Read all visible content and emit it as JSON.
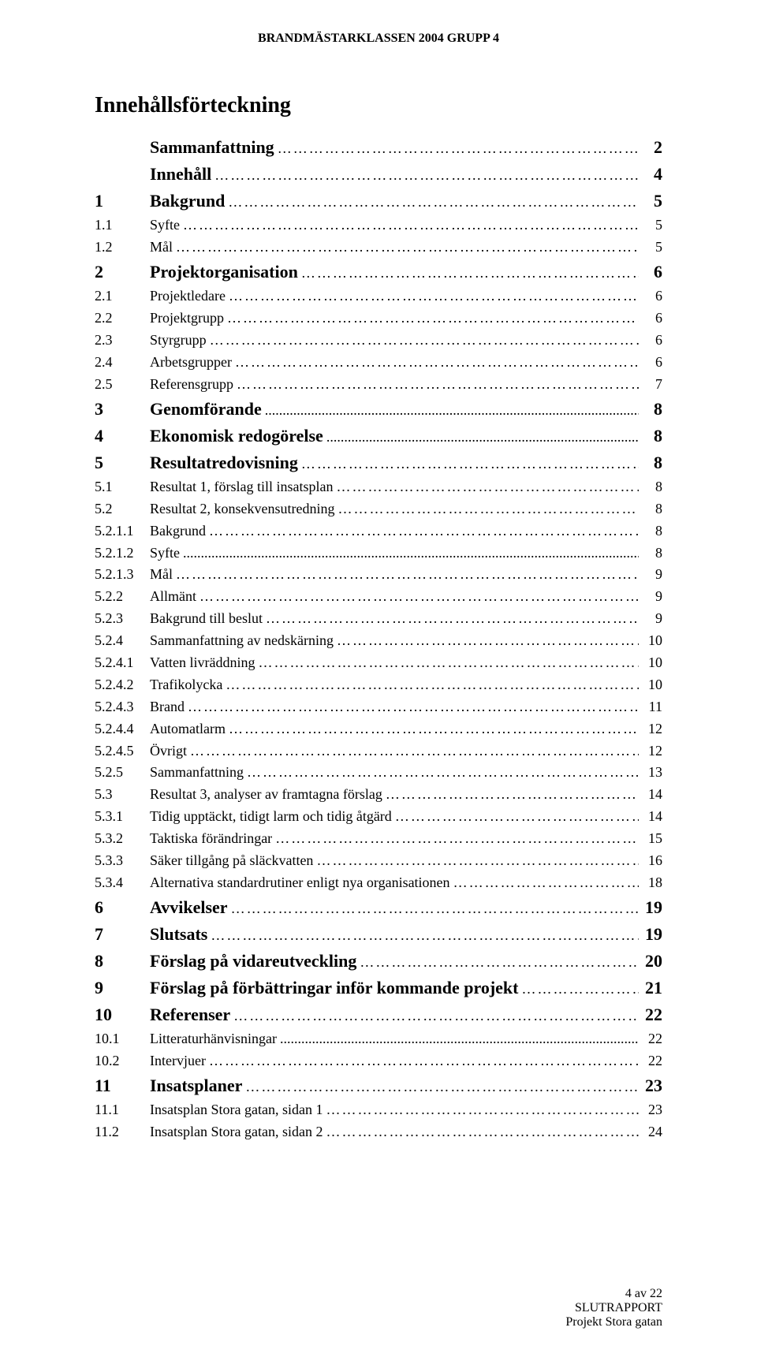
{
  "header": "BRANDMÄSTARKLASSEN 2004 GRUPP 4",
  "toc_title": "Innehållsförteckning",
  "footer_line1": "4 av 22",
  "footer_line2": "SLUTRAPPORT",
  "footer_line3": "Projekt Stora gatan",
  "entries": [
    {
      "num": "",
      "label": "Sammanfattning",
      "page": "2",
      "bold": true,
      "big": true
    },
    {
      "num": "",
      "label": "Innehåll",
      "page": "4",
      "bold": true,
      "big": true
    },
    {
      "num": "1",
      "label": "Bakgrund",
      "page": "5",
      "bold": true,
      "big": true
    },
    {
      "num": "1.1",
      "label": "Syfte",
      "page": "5",
      "bold": false,
      "big": false
    },
    {
      "num": "1.2",
      "label": "Mål",
      "page": "5",
      "bold": false,
      "big": false
    },
    {
      "num": "2",
      "label": "Projektorganisation",
      "page": "6",
      "bold": true,
      "big": true
    },
    {
      "num": "2.1",
      "label": "Projektledare",
      "page": "6",
      "bold": false,
      "big": false
    },
    {
      "num": "2.2",
      "label": "Projektgrupp",
      "page": "6",
      "bold": false,
      "big": false
    },
    {
      "num": "2.3",
      "label": "Styrgrupp",
      "page": "6",
      "bold": false,
      "big": false
    },
    {
      "num": "2.4",
      "label": "Arbetsgrupper",
      "page": "6",
      "bold": false,
      "big": false
    },
    {
      "num": "2.5",
      "label": "Referensgrupp",
      "page": "7",
      "bold": false,
      "big": false
    },
    {
      "num": "3",
      "label": "Genomförande",
      "page": "8",
      "bold": true,
      "big": true,
      "dots": "dotty"
    },
    {
      "num": "4",
      "label": "Ekonomisk redogörelse",
      "page": "8",
      "bold": true,
      "big": true,
      "dots": "dotty"
    },
    {
      "num": "5",
      "label": "Resultatredovisning",
      "page": "8",
      "bold": true,
      "big": true
    },
    {
      "num": "5.1",
      "label": "Resultat 1, förslag till insatsplan",
      "page": "8",
      "bold": false,
      "big": false
    },
    {
      "num": "5.2",
      "label": "Resultat 2, konsekvensutredning",
      "page": "8",
      "bold": false,
      "big": false
    },
    {
      "num": "5.2.1.1",
      "label": "Bakgrund",
      "page": "8",
      "bold": false,
      "big": false
    },
    {
      "num": "5.2.1.2",
      "label": "Syfte",
      "page": "8",
      "bold": false,
      "big": false,
      "dots": "dotty"
    },
    {
      "num": "5.2.1.3",
      "label": "Mål",
      "page": "9",
      "bold": false,
      "big": false
    },
    {
      "num": "5.2.2",
      "label": "Allmänt",
      "page": "9",
      "bold": false,
      "big": false
    },
    {
      "num": "5.2.3",
      "label": "Bakgrund till beslut",
      "page": "9",
      "bold": false,
      "big": false
    },
    {
      "num": "5.2.4",
      "label": "Sammanfattning av nedskärning",
      "page": "10",
      "bold": false,
      "big": false
    },
    {
      "num": "5.2.4.1",
      "label": "Vatten livräddning",
      "page": "10",
      "bold": false,
      "big": false
    },
    {
      "num": "5.2.4.2",
      "label": "Trafikolycka",
      "page": "10",
      "bold": false,
      "big": false
    },
    {
      "num": "5.2.4.3",
      "label": "Brand",
      "page": "11",
      "bold": false,
      "big": false
    },
    {
      "num": "5.2.4.4",
      "label": "Automatlarm",
      "page": "12",
      "bold": false,
      "big": false
    },
    {
      "num": "5.2.4.5",
      "label": "Övrigt",
      "page": "12",
      "bold": false,
      "big": false
    },
    {
      "num": "5.2.5",
      "label": "Sammanfattning",
      "page": "13",
      "bold": false,
      "big": false
    },
    {
      "num": "5.3",
      "label": "Resultat 3, analyser av framtagna förslag",
      "page": "14",
      "bold": false,
      "big": false
    },
    {
      "num": "5.3.1",
      "label": "Tidig upptäckt, tidigt larm och tidig åtgärd",
      "page": "14",
      "bold": false,
      "big": false
    },
    {
      "num": "5.3.2",
      "label": "Taktiska förändringar",
      "page": "15",
      "bold": false,
      "big": false
    },
    {
      "num": "5.3.3",
      "label": "Säker tillgång på släckvatten",
      "page": "16",
      "bold": false,
      "big": false
    },
    {
      "num": "5.3.4",
      "label": "Alternativa standardrutiner enligt nya organisationen",
      "page": "18",
      "bold": false,
      "big": false
    },
    {
      "num": "6",
      "label": "Avvikelser",
      "page": "19",
      "bold": true,
      "big": true
    },
    {
      "num": "7",
      "label": "Slutsats",
      "page": "19",
      "bold": true,
      "big": true
    },
    {
      "num": "8",
      "label": "Förslag på vidareutveckling",
      "page": "20",
      "bold": true,
      "big": true
    },
    {
      "num": "9",
      "label": "Förslag på förbättringar inför kommande projekt",
      "page": "21",
      "bold": true,
      "big": true
    },
    {
      "num": "10",
      "label": "Referenser",
      "page": "22",
      "bold": true,
      "big": true
    },
    {
      "num": "10.1",
      "label": "Litteraturhänvisningar",
      "page": "22",
      "bold": false,
      "big": false,
      "dots": "dotty"
    },
    {
      "num": "10.2",
      "label": "Intervjuer",
      "page": "22",
      "bold": false,
      "big": false
    },
    {
      "num": "11",
      "label": "Insatsplaner",
      "page": "23",
      "bold": true,
      "big": true
    },
    {
      "num": "11.1",
      "label": "Insatsplan Stora gatan, sidan 1",
      "page": "23",
      "bold": false,
      "big": false
    },
    {
      "num": "11.2",
      "label": "Insatsplan Stora gatan, sidan 2",
      "page": "24",
      "bold": false,
      "big": false
    }
  ]
}
